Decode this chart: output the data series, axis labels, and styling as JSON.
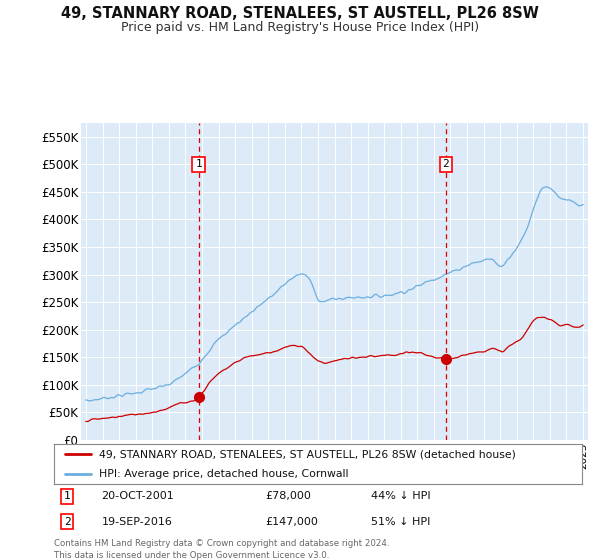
{
  "title": "49, STANNARY ROAD, STENALEES, ST AUSTELL, PL26 8SW",
  "subtitle": "Price paid vs. HM Land Registry's House Price Index (HPI)",
  "bg_color": "#ddeaf7",
  "hpi_color": "#6aaee0",
  "price_color": "#cc0000",
  "vline_color": "#dd0000",
  "marker1_date_label": "20-OCT-2001",
  "marker1_price_label": "£78,000",
  "marker1_hpi_label": "44% ↓ HPI",
  "marker2_date_label": "19-SEP-2016",
  "marker2_price_label": "£147,000",
  "marker2_hpi_label": "51% ↓ HPI",
  "legend_line1": "49, STANNARY ROAD, STENALEES, ST AUSTELL, PL26 8SW (detached house)",
  "legend_line2": "HPI: Average price, detached house, Cornwall",
  "footer": "Contains HM Land Registry data © Crown copyright and database right 2024.\nThis data is licensed under the Open Government Licence v3.0.",
  "ylim": [
    0,
    575000
  ],
  "yticks": [
    0,
    50000,
    100000,
    150000,
    200000,
    250000,
    300000,
    350000,
    400000,
    450000,
    500000,
    550000
  ],
  "ytick_labels": [
    "£0",
    "£50K",
    "£100K",
    "£150K",
    "£200K",
    "£250K",
    "£300K",
    "£350K",
    "£400K",
    "£450K",
    "£500K",
    "£550K"
  ],
  "marker1_x": 2001.8,
  "marker1_y_price": 78000,
  "marker2_x": 2016.72,
  "marker2_y_price": 147000,
  "xmin": 1994.7,
  "xmax": 2025.3
}
